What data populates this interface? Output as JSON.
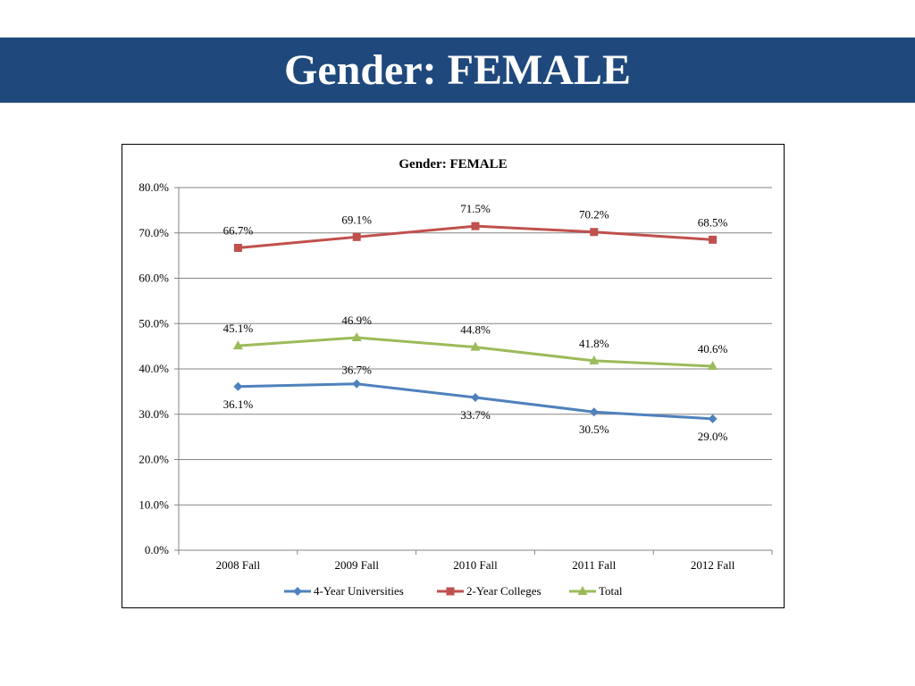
{
  "slide": {
    "title": "Gender: FEMALE"
  },
  "chart_data": {
    "type": "line",
    "title": "Gender: FEMALE",
    "categories": [
      "2008 Fall",
      "2009 Fall",
      "2010 Fall",
      "2011 Fall",
      "2012 Fall"
    ],
    "series": [
      {
        "name": "4-Year Universities",
        "values": [
          36.1,
          36.7,
          33.7,
          30.5,
          29.0
        ],
        "labels": [
          "36.1%",
          "36.7%",
          "33.7%",
          "30.5%",
          "29.0%"
        ],
        "color": "#4f81bd",
        "marker": "diamond"
      },
      {
        "name": "2-Year Colleges",
        "values": [
          66.7,
          69.1,
          71.5,
          70.2,
          68.5
        ],
        "labels": [
          "66.7%",
          "69.1%",
          "71.5%",
          "70.2%",
          "68.5%"
        ],
        "color": "#c0504d",
        "marker": "square"
      },
      {
        "name": "Total",
        "values": [
          45.1,
          46.9,
          44.8,
          41.8,
          40.6
        ],
        "labels": [
          "45.1%",
          "46.9%",
          "44.8%",
          "41.8%",
          "40.6%"
        ],
        "color": "#9bbb59",
        "marker": "triangle"
      }
    ],
    "ylim": [
      0,
      80
    ],
    "yticks": [
      "0.0%",
      "10.0%",
      "20.0%",
      "30.0%",
      "40.0%",
      "50.0%",
      "60.0%",
      "70.0%",
      "80.0%"
    ],
    "grid": true,
    "legend": "bottom"
  }
}
